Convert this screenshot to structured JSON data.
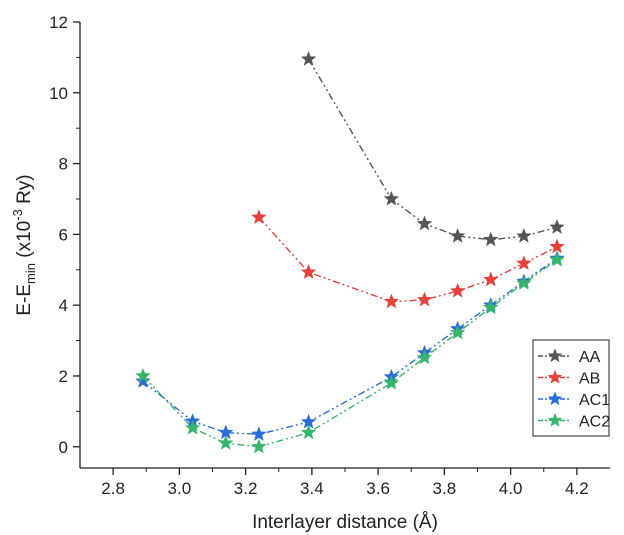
{
  "chart_data": {
    "type": "line",
    "xlabel": "Interlayer distance (Å)",
    "ylabel": {
      "prefix": "E-E",
      "sub": "min",
      "middle": " (x10",
      "sup": "-3",
      "suffix": " Ry)"
    },
    "xlim": [
      2.7,
      4.3
    ],
    "ylim": [
      -0.6,
      12
    ],
    "x_ticks": [
      "2.8",
      "3.0",
      "3.2",
      "3.4",
      "3.6",
      "3.8",
      "4.0",
      "4.2"
    ],
    "y_ticks": [
      "0",
      "2",
      "4",
      "6",
      "8",
      "10",
      "12"
    ],
    "grid": false,
    "legend_position": "lower-right",
    "series": [
      {
        "name": "AA",
        "color": "#555555",
        "points": [
          [
            3.39,
            10.95
          ],
          [
            3.64,
            7.0
          ],
          [
            3.74,
            6.3
          ],
          [
            3.84,
            5.95
          ],
          [
            3.94,
            5.85
          ],
          [
            4.04,
            5.95
          ],
          [
            4.14,
            6.2
          ]
        ]
      },
      {
        "name": "AB",
        "color": "#e8403a",
        "points": [
          [
            3.24,
            6.48
          ],
          [
            3.39,
            4.93
          ],
          [
            3.64,
            4.1
          ],
          [
            3.74,
            4.15
          ],
          [
            3.84,
            4.4
          ],
          [
            3.94,
            4.72
          ],
          [
            4.04,
            5.18
          ],
          [
            4.14,
            5.65
          ]
        ]
      },
      {
        "name": "AC1",
        "color": "#2a6fd6",
        "points": [
          [
            2.89,
            1.85
          ],
          [
            3.04,
            0.72
          ],
          [
            3.14,
            0.4
          ],
          [
            3.24,
            0.35
          ],
          [
            3.39,
            0.7
          ],
          [
            3.64,
            1.97
          ],
          [
            3.74,
            2.65
          ],
          [
            3.84,
            3.33
          ],
          [
            3.94,
            4.0
          ],
          [
            4.04,
            4.67
          ],
          [
            4.14,
            5.32
          ]
        ]
      },
      {
        "name": "AC2",
        "color": "#35b56a",
        "points": [
          [
            2.89,
            2.0
          ],
          [
            3.04,
            0.53
          ],
          [
            3.14,
            0.1
          ],
          [
            3.24,
            0.0
          ],
          [
            3.39,
            0.4
          ],
          [
            3.64,
            1.8
          ],
          [
            3.74,
            2.52
          ],
          [
            3.84,
            3.22
          ],
          [
            3.94,
            3.93
          ],
          [
            4.04,
            4.62
          ],
          [
            4.14,
            5.28
          ]
        ]
      }
    ]
  }
}
